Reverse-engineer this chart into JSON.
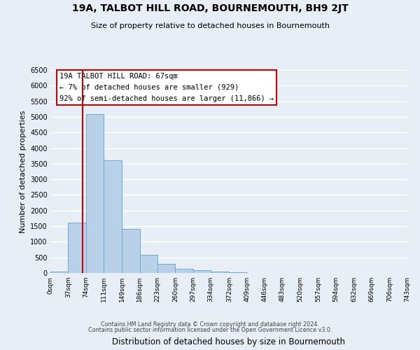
{
  "title": "19A, TALBOT HILL ROAD, BOURNEMOUTH, BH9 2JT",
  "subtitle": "Size of property relative to detached houses in Bournemouth",
  "xlabel": "Distribution of detached houses by size in Bournemouth",
  "ylabel": "Number of detached properties",
  "bin_edges": [
    0,
    37,
    74,
    111,
    149,
    186,
    223,
    260,
    297,
    334,
    372,
    409,
    446,
    483,
    520,
    557,
    594,
    632,
    669,
    706,
    743
  ],
  "bin_labels": [
    "0sqm",
    "37sqm",
    "74sqm",
    "111sqm",
    "149sqm",
    "186sqm",
    "223sqm",
    "260sqm",
    "297sqm",
    "334sqm",
    "372sqm",
    "409sqm",
    "446sqm",
    "483sqm",
    "520sqm",
    "557sqm",
    "594sqm",
    "632sqm",
    "669sqm",
    "706sqm",
    "743sqm"
  ],
  "counts": [
    50,
    1620,
    5080,
    3600,
    1420,
    590,
    300,
    140,
    80,
    50,
    30,
    10,
    5,
    0,
    0,
    0,
    0,
    0,
    0,
    0
  ],
  "bar_color": "#b8d0e8",
  "bar_edge_color": "#6aaad4",
  "property_line_x": 67,
  "property_line_color": "#cc0000",
  "ylim": [
    0,
    6500
  ],
  "yticks": [
    0,
    500,
    1000,
    1500,
    2000,
    2500,
    3000,
    3500,
    4000,
    4500,
    5000,
    5500,
    6000,
    6500
  ],
  "annotation_text": "19A TALBOT HILL ROAD: 67sqm\n← 7% of detached houses are smaller (929)\n92% of semi-detached houses are larger (11,866) →",
  "annotation_box_color": "#ffffff",
  "annotation_box_edge_color": "#cc0000",
  "footer1": "Contains HM Land Registry data © Crown copyright and database right 2024.",
  "footer2": "Contains public sector information licensed under the Open Government Licence v3.0.",
  "background_color": "#e8eef5",
  "grid_color": "#ffffff",
  "axes_bg_color": "#e8eef5"
}
